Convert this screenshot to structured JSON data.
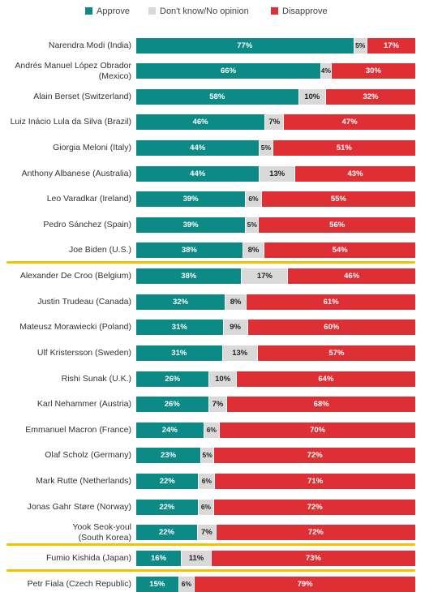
{
  "colors": {
    "approve": "#0b8a86",
    "unsure": "#d9d9d9",
    "disapprove": "#de2f35",
    "highlight": "#f2c200"
  },
  "legend": [
    {
      "key": "approve",
      "label": "Approve"
    },
    {
      "key": "unsure",
      "label": "Don't know/No opinion"
    },
    {
      "key": "disapprove",
      "label": "Disapprove"
    }
  ],
  "chart_data": {
    "type": "bar",
    "orientation": "horizontal",
    "stacked": true,
    "xlim": [
      0,
      100
    ],
    "unit": "%",
    "legend_position": "top",
    "categories": [
      [
        "Narendra Modi (India)"
      ],
      [
        "Andrés Manuel López Obrador",
        "(Mexico)"
      ],
      [
        "Alain Berset (Switzerland)"
      ],
      [
        "Luiz Inácio Lula da Silva (Brazil)"
      ],
      [
        "Giorgia Meloni (Italy)"
      ],
      [
        "Anthony Albanese (Australia)"
      ],
      [
        "Leo Varadkar (Ireland)"
      ],
      [
        "Pedro Sánchez (Spain)"
      ],
      [
        "Joe Biden (U.S.)"
      ],
      [
        "Alexander De Croo (Belgium)"
      ],
      [
        "Justin Trudeau (Canada)"
      ],
      [
        "Mateusz Morawiecki (Poland)"
      ],
      [
        "Ulf Kristersson (Sweden)"
      ],
      [
        "Rishi Sunak (U.K.)"
      ],
      [
        "Karl Nehammer (Austria)"
      ],
      [
        "Emmanuel Macron (France)"
      ],
      [
        "Olaf Scholz (Germany)"
      ],
      [
        "Mark Rutte (Netherlands)"
      ],
      [
        "Jonas Gahr Støre (Norway)"
      ],
      [
        "Yook Seok-youl",
        "(South Korea)"
      ],
      [
        "Fumio Kishida (Japan)"
      ],
      [
        "Petr Fiala (Czech Republic)"
      ]
    ],
    "series": [
      {
        "name": "Approve",
        "key": "approve",
        "values": [
          77,
          66,
          58,
          46,
          44,
          44,
          39,
          39,
          38,
          38,
          32,
          31,
          31,
          26,
          26,
          24,
          23,
          22,
          22,
          22,
          16,
          15
        ]
      },
      {
        "name": "Don't know/No opinion",
        "key": "unsure",
        "values": [
          5,
          4,
          10,
          7,
          5,
          13,
          6,
          5,
          8,
          17,
          8,
          9,
          13,
          10,
          7,
          6,
          5,
          6,
          6,
          7,
          11,
          6
        ]
      },
      {
        "name": "Disapprove",
        "key": "disapprove",
        "values": [
          17,
          30,
          32,
          47,
          51,
          43,
          55,
          56,
          54,
          46,
          61,
          60,
          57,
          64,
          68,
          70,
          72,
          71,
          72,
          72,
          73,
          79
        ]
      }
    ],
    "value_labels": [
      [
        "77%",
        "5%",
        "17%"
      ],
      [
        "66%",
        "4%",
        "30%"
      ],
      [
        "58%",
        "10%",
        "32%"
      ],
      [
        "46%",
        "7%",
        "47%"
      ],
      [
        "44%",
        "5%",
        "51%"
      ],
      [
        "44%",
        "13%",
        "43%"
      ],
      [
        "39%",
        "6%",
        "55%"
      ],
      [
        "39%",
        "5%",
        "56%"
      ],
      [
        "38%",
        "8%",
        "54%"
      ],
      [
        "38%",
        "17%",
        "46%"
      ],
      [
        "32%",
        "8%",
        "61%"
      ],
      [
        "31%",
        "9%",
        "60%"
      ],
      [
        "31%",
        "13%",
        "57%"
      ],
      [
        "26%",
        "10%",
        "64%"
      ],
      [
        "26%",
        "7%",
        "68%"
      ],
      [
        "24%",
        "6%",
        "70%"
      ],
      [
        "23%",
        "5%",
        "72%"
      ],
      [
        "22%",
        "6%",
        "71%"
      ],
      [
        "22%",
        "6%",
        "72%"
      ],
      [
        "22%",
        "7%",
        "72%"
      ],
      [
        "16%",
        "11%",
        "73%"
      ],
      [
        "15%",
        "6%",
        "79%"
      ]
    ],
    "highlighted": [
      "Joe Biden (U.S.)",
      "Yook Seok-youl",
      "Fumio Kishida (Japan)"
    ]
  }
}
